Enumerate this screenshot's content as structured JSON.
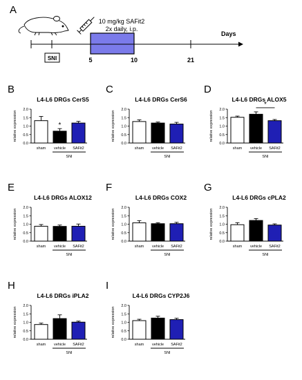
{
  "figure": {
    "colors": {
      "sham": "#ffffff",
      "vehicle": "#000000",
      "safit2": "#1f1fb4",
      "treatment_box": "#7b7bea",
      "stroke": "#000000"
    }
  },
  "timeline": {
    "panel_letter": "A",
    "dose_line1": "10 mg/kg SAFit2",
    "dose_line2": "2x daily, i.p.",
    "days_label": "Days",
    "surgery_label": "SNI",
    "ticks": [
      "5",
      "10",
      "21"
    ],
    "icons": [
      "mouse-icon",
      "syringe-icon"
    ]
  },
  "chart_data": [
    {
      "letter": "B",
      "type": "bar",
      "title": "L4-L6 DRGs CerS5",
      "ylabel": "relative expression",
      "ylim": [
        0,
        2.0
      ],
      "yticks": [
        "0.0",
        "0.5",
        "1.0",
        "1.5",
        "2.0"
      ],
      "categories": [
        "sham",
        "vehicle",
        "SAFit2"
      ],
      "group_label": "SNI",
      "values": [
        1.32,
        0.7,
        1.18
      ],
      "errors": [
        0.25,
        0.15,
        0.1
      ],
      "annotations": [
        {
          "text": "*",
          "target": "vehicle"
        }
      ]
    },
    {
      "letter": "C",
      "type": "bar",
      "title": "L4-L6 DRGs CerS6",
      "ylabel": "relative expression",
      "ylim": [
        0,
        2.0
      ],
      "yticks": [
        "0.0",
        "0.5",
        "1.0",
        "1.5",
        "2.0"
      ],
      "categories": [
        "sham",
        "vehicle",
        "SAFit2"
      ],
      "group_label": "SNI",
      "values": [
        1.27,
        1.18,
        1.12
      ],
      "errors": [
        0.1,
        0.06,
        0.1
      ],
      "annotations": []
    },
    {
      "letter": "D",
      "type": "bar",
      "title": "L4-L6 DRGs ALOX5",
      "ylabel": "relative expression",
      "ylim": [
        0,
        2.0
      ],
      "yticks": [
        "0.0",
        "0.5",
        "1.0",
        "1.5",
        "2.0"
      ],
      "categories": [
        "sham",
        "vehicle",
        "SAFit2"
      ],
      "group_label": "SNI",
      "values": [
        1.52,
        1.7,
        1.32
      ],
      "errors": [
        0.07,
        0.14,
        0.07
      ],
      "annotations": [
        {
          "text": "*",
          "bracket": [
            "vehicle",
            "SAFit2"
          ]
        }
      ]
    },
    {
      "letter": "E",
      "type": "bar",
      "title": "L4-L6 DRGs ALOX12",
      "ylabel": "relative expression",
      "ylim": [
        0,
        2.0
      ],
      "yticks": [
        "0.0",
        "0.5",
        "1.0",
        "1.5",
        "2.0"
      ],
      "categories": [
        "sham",
        "vehicle",
        "SAFit2"
      ],
      "group_label": "SNI",
      "values": [
        0.88,
        0.87,
        0.88
      ],
      "errors": [
        0.1,
        0.08,
        0.13
      ],
      "annotations": []
    },
    {
      "letter": "F",
      "type": "bar",
      "title": "L4-L6 DRGs COX2",
      "ylabel": "relative expression",
      "ylim": [
        0,
        2.0
      ],
      "yticks": [
        "0.0",
        "0.5",
        "1.0",
        "1.5",
        "2.0"
      ],
      "categories": [
        "sham",
        "vehicle",
        "SAFit2"
      ],
      "group_label": "SNI",
      "values": [
        1.08,
        1.03,
        1.03
      ],
      "errors": [
        0.13,
        0.06,
        0.08
      ],
      "annotations": []
    },
    {
      "letter": "G",
      "type": "bar",
      "title": "L4-L6 DRGs cPLA2",
      "ylabel": "relative expression",
      "ylim": [
        0,
        2.0
      ],
      "yticks": [
        "0.0",
        "0.5",
        "1.0",
        "1.5",
        "2.0"
      ],
      "categories": [
        "sham",
        "vehicle",
        "SAFit2"
      ],
      "group_label": "SNI",
      "values": [
        0.97,
        1.22,
        0.95
      ],
      "errors": [
        0.12,
        0.11,
        0.07
      ],
      "annotations": []
    },
    {
      "letter": "H",
      "type": "bar",
      "title": "L4-L6 DRGs iPLA2",
      "ylabel": "relative expression",
      "ylim": [
        0,
        2.0
      ],
      "yticks": [
        "0.0",
        "0.5",
        "1.0",
        "1.5",
        "2.0"
      ],
      "categories": [
        "sham",
        "vehicle",
        "SAFit2"
      ],
      "group_label": "SNI",
      "values": [
        0.87,
        1.22,
        1.01
      ],
      "errors": [
        0.08,
        0.22,
        0.06
      ],
      "annotations": []
    },
    {
      "letter": "I",
      "type": "bar",
      "title": "L4-L6 DRGs CYP2J6",
      "ylabel": "relative expression",
      "ylim": [
        0,
        2.0
      ],
      "yticks": [
        "0.0",
        "0.5",
        "1.0",
        "1.5",
        "2.0"
      ],
      "categories": [
        "sham",
        "vehicle",
        "SAFit2"
      ],
      "group_label": "SNI",
      "values": [
        1.1,
        1.25,
        1.16
      ],
      "errors": [
        0.08,
        0.11,
        0.08
      ],
      "annotations": []
    }
  ]
}
